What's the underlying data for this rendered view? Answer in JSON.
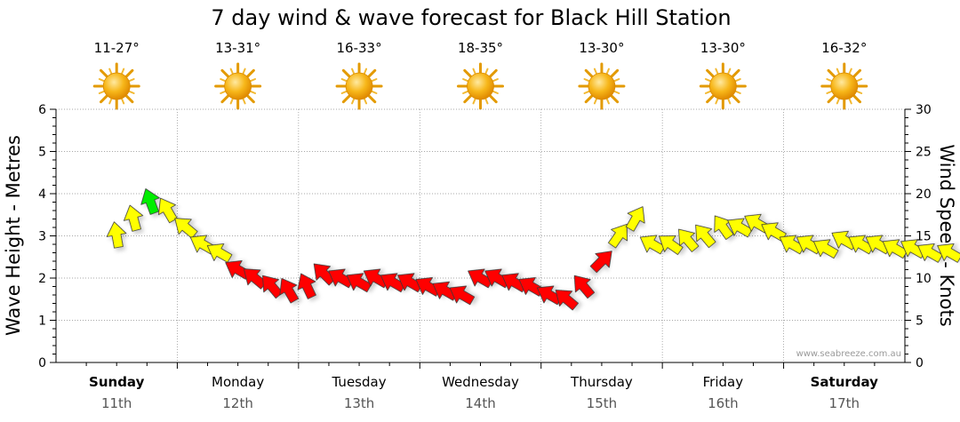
{
  "chart_data": {
    "type": "line",
    "title": "7 day wind & wave forecast for Black Hill Station",
    "left_axis": {
      "label": "Wave Height - Metres",
      "range": [
        0,
        6
      ],
      "ticks": [
        "0",
        "1",
        "2",
        "3",
        "4",
        "5",
        "6"
      ]
    },
    "right_axis": {
      "label": "Wind Speed - Knots",
      "range": [
        0,
        30
      ],
      "ticks": [
        "0",
        "5",
        "10",
        "15",
        "20",
        "25",
        "30"
      ]
    },
    "grid": "dotted, vertical at day boundaries and horizontal at each metre",
    "days": [
      {
        "day": "Sunday",
        "date": "11th",
        "temp": "11-27°",
        "bold": true
      },
      {
        "day": "Monday",
        "date": "12th",
        "temp": "13-31°",
        "bold": false
      },
      {
        "day": "Tuesday",
        "date": "13th",
        "temp": "16-33°",
        "bold": false
      },
      {
        "day": "Wednesday",
        "date": "14th",
        "temp": "18-35°",
        "bold": false
      },
      {
        "day": "Thursday",
        "date": "15th",
        "temp": "13-30°",
        "bold": false
      },
      {
        "day": "Friday",
        "date": "16th",
        "temp": "13-30°",
        "bold": false
      },
      {
        "day": "Saturday",
        "date": "17th",
        "temp": "16-32°",
        "bold": true
      }
    ],
    "weather_icon": "sun-icon",
    "series": [
      {
        "name": "Wind Speed (knots)",
        "marker": "direction-arrow",
        "color_scale": [
          {
            "max_knots": 12,
            "color": "#ff0000"
          },
          {
            "max_knots": 18,
            "color": "#ffff00"
          },
          {
            "max_knots": 99,
            "color": "#00ee00"
          }
        ],
        "x_days": [
          0.0,
          0.14,
          0.28,
          0.42,
          0.57,
          0.71,
          0.85,
          1.0,
          1.14,
          1.28,
          1.42,
          1.57,
          1.71,
          1.85,
          2.0,
          2.14,
          2.28,
          2.42,
          2.57,
          2.71,
          2.85,
          3.0,
          3.14,
          3.28,
          3.42,
          3.57,
          3.71,
          3.85,
          4.0,
          4.14,
          4.28,
          4.42,
          4.57,
          4.71,
          4.85,
          5.0,
          5.14,
          5.28,
          5.42,
          5.57,
          5.71,
          5.85,
          6.0,
          6.14,
          6.28,
          6.42,
          6.57,
          6.71,
          6.87
        ],
        "values": [
          15,
          17,
          19,
          18,
          16,
          14,
          13,
          11,
          10,
          9,
          8.5,
          9,
          10.5,
          10,
          9.5,
          10,
          9.5,
          9.5,
          9,
          8.5,
          8,
          10,
          10,
          9.5,
          9,
          8,
          7.5,
          9,
          12,
          15,
          17,
          14,
          14,
          14.5,
          15,
          16,
          16,
          16.5,
          15.5,
          14,
          14,
          13.5,
          14.5,
          14,
          14,
          13.5,
          13.5,
          13,
          13
        ],
        "direction_deg": [
          350,
          345,
          340,
          330,
          310,
          300,
          300,
          300,
          310,
          320,
          330,
          335,
          315,
          300,
          300,
          300,
          300,
          300,
          300,
          300,
          300,
          300,
          300,
          300,
          300,
          300,
          310,
          320,
          45,
          35,
          30,
          300,
          305,
          320,
          320,
          325,
          300,
          300,
          300,
          300,
          300,
          300,
          300,
          300,
          300,
          300,
          300,
          300,
          300
        ]
      }
    ]
  },
  "credit": "www.seabreeze.com.au"
}
